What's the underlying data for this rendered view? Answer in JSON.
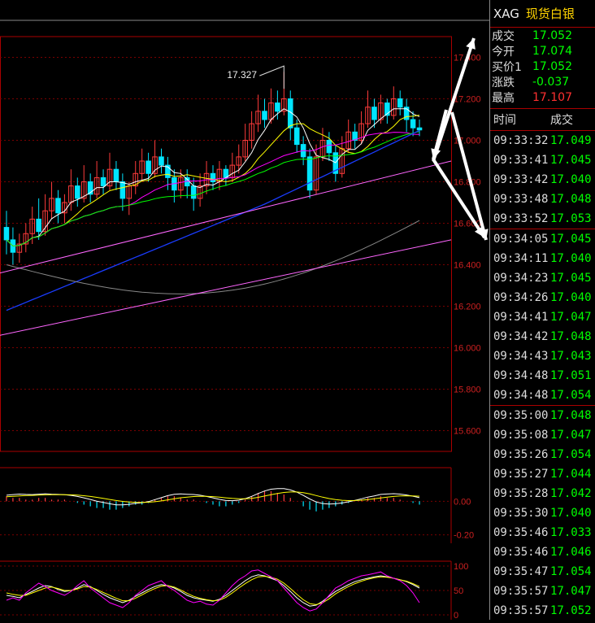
{
  "sidebar": {
    "symbol": "XAG",
    "name": "现货白银",
    "quote": [
      {
        "label": "成交",
        "value": "17.052",
        "tone": "green"
      },
      {
        "label": "今开",
        "value": "17.074",
        "tone": "green"
      },
      {
        "label": "买价1",
        "value": "17.052",
        "tone": "green"
      },
      {
        "label": "涨跌",
        "value": "-0.037",
        "tone": "green"
      },
      {
        "label": "最高",
        "value": "17.107",
        "tone": "red"
      }
    ],
    "ticks_header": {
      "time": "时间",
      "price": "成交"
    },
    "ticks": [
      {
        "time": "09:33:32",
        "price": "17.049"
      },
      {
        "time": "09:33:41",
        "price": "17.045"
      },
      {
        "time": "09:33:42",
        "price": "17.040"
      },
      {
        "time": "09:33:48",
        "price": "17.048"
      },
      {
        "time": "09:33:52",
        "price": "17.053"
      },
      {
        "time": "09:34:05",
        "price": "17.045"
      },
      {
        "time": "09:34:11",
        "price": "17.040"
      },
      {
        "time": "09:34:23",
        "price": "17.045"
      },
      {
        "time": "09:34:26",
        "price": "17.040"
      },
      {
        "time": "09:34:41",
        "price": "17.047"
      },
      {
        "time": "09:34:42",
        "price": "17.048"
      },
      {
        "time": "09:34:43",
        "price": "17.043"
      },
      {
        "time": "09:34:48",
        "price": "17.051"
      },
      {
        "time": "09:34:48",
        "price": "17.054"
      },
      {
        "time": "09:35:00",
        "price": "17.048"
      },
      {
        "time": "09:35:08",
        "price": "17.047"
      },
      {
        "time": "09:35:26",
        "price": "17.054"
      },
      {
        "time": "09:35:27",
        "price": "17.044"
      },
      {
        "time": "09:35:28",
        "price": "17.042"
      },
      {
        "time": "09:35:30",
        "price": "17.040"
      },
      {
        "time": "09:35:46",
        "price": "17.033"
      },
      {
        "time": "09:35:46",
        "price": "17.046"
      },
      {
        "time": "09:35:47",
        "price": "17.054"
      },
      {
        "time": "09:35:57",
        "price": "17.047"
      },
      {
        "time": "09:35:57",
        "price": "17.052"
      }
    ]
  },
  "chart_data": [
    {
      "type": "candlestick",
      "title": "",
      "ylim": [
        15.5,
        17.5
      ],
      "yticks": [
        "17.400",
        "17.200",
        "17.000",
        "16.800",
        "16.600",
        "16.400",
        "16.200",
        "16.000",
        "15.800",
        "15.600"
      ],
      "ytick_values": [
        17.4,
        17.2,
        17.0,
        16.8,
        16.6,
        16.4,
        16.2,
        16.0,
        15.8,
        15.6
      ],
      "annotation": {
        "text": "17.327",
        "value": 17.327
      },
      "candles": [
        [
          16.58,
          16.52,
          16.66,
          16.45
        ],
        [
          16.52,
          16.46,
          16.58,
          16.4
        ],
        [
          16.46,
          16.5,
          16.55,
          16.41
        ],
        [
          16.5,
          16.55,
          16.6,
          16.46
        ],
        [
          16.55,
          16.62,
          16.68,
          16.5
        ],
        [
          16.62,
          16.56,
          16.72,
          16.52
        ],
        [
          16.56,
          16.66,
          16.74,
          16.54
        ],
        [
          16.66,
          16.72,
          16.8,
          16.62
        ],
        [
          16.72,
          16.65,
          16.76,
          16.6
        ],
        [
          16.65,
          16.7,
          16.74,
          16.6
        ],
        [
          16.7,
          16.78,
          16.86,
          16.66
        ],
        [
          16.78,
          16.72,
          16.82,
          16.68
        ],
        [
          16.72,
          16.8,
          16.88,
          16.7
        ],
        [
          16.8,
          16.74,
          16.84,
          16.7
        ],
        [
          16.74,
          16.82,
          16.9,
          16.72
        ],
        [
          16.82,
          16.78,
          16.86,
          16.74
        ],
        [
          16.78,
          16.86,
          16.94,
          16.76
        ],
        [
          16.86,
          16.8,
          16.9,
          16.76
        ],
        [
          16.8,
          16.72,
          16.84,
          16.66
        ],
        [
          16.72,
          16.78,
          16.8,
          16.64
        ],
        [
          16.78,
          16.84,
          16.9,
          16.74
        ],
        [
          16.84,
          16.9,
          16.96,
          16.8
        ],
        [
          16.9,
          16.84,
          16.94,
          16.8
        ],
        [
          16.84,
          16.92,
          17.0,
          16.82
        ],
        [
          16.92,
          16.88,
          16.96,
          16.84
        ],
        [
          16.88,
          16.82,
          16.92,
          16.76
        ],
        [
          16.82,
          16.76,
          16.86,
          16.7
        ],
        [
          16.76,
          16.82,
          16.86,
          16.72
        ],
        [
          16.82,
          16.78,
          16.86,
          16.72
        ],
        [
          16.78,
          16.72,
          16.82,
          16.66
        ],
        [
          16.72,
          16.78,
          16.84,
          16.68
        ],
        [
          16.78,
          16.84,
          16.9,
          16.74
        ],
        [
          16.84,
          16.8,
          16.88,
          16.76
        ],
        [
          16.8,
          16.86,
          16.9,
          16.76
        ],
        [
          16.86,
          16.82,
          16.88,
          16.78
        ],
        [
          16.82,
          16.88,
          16.94,
          16.8
        ],
        [
          16.88,
          16.92,
          16.98,
          16.84
        ],
        [
          16.92,
          17.0,
          17.08,
          16.9
        ],
        [
          17.0,
          17.08,
          17.14,
          16.96
        ],
        [
          17.08,
          17.14,
          17.22,
          17.04
        ],
        [
          17.14,
          17.1,
          17.2,
          17.06
        ],
        [
          17.1,
          17.18,
          17.25,
          17.08
        ],
        [
          17.18,
          17.14,
          17.24,
          17.1
        ],
        [
          17.14,
          17.2,
          17.33,
          17.12
        ],
        [
          17.2,
          17.06,
          17.24,
          17.0
        ],
        [
          17.06,
          16.98,
          17.1,
          16.94
        ],
        [
          16.98,
          16.92,
          17.02,
          16.88
        ],
        [
          16.92,
          16.76,
          16.96,
          16.72
        ],
        [
          16.76,
          16.92,
          16.98,
          16.74
        ],
        [
          16.92,
          17.0,
          17.06,
          16.9
        ],
        [
          17.0,
          16.94,
          17.04,
          16.9
        ],
        [
          16.94,
          16.84,
          16.98,
          16.8
        ],
        [
          16.84,
          16.96,
          17.02,
          16.82
        ],
        [
          16.96,
          17.04,
          17.1,
          16.94
        ],
        [
          17.04,
          17.0,
          17.08,
          16.96
        ],
        [
          17.0,
          17.08,
          17.14,
          16.98
        ],
        [
          17.08,
          17.16,
          17.24,
          17.06
        ],
        [
          17.16,
          17.1,
          17.2,
          17.06
        ],
        [
          17.1,
          17.18,
          17.22,
          17.08
        ],
        [
          17.18,
          17.12,
          17.2,
          17.08
        ],
        [
          17.12,
          17.2,
          17.26,
          17.1
        ],
        [
          17.2,
          17.16,
          17.24,
          17.12
        ],
        [
          17.16,
          17.1,
          17.2,
          17.04
        ],
        [
          17.1,
          17.06,
          17.14,
          17.02
        ],
        [
          17.06,
          17.05,
          17.1,
          17.02
        ]
      ]
    },
    {
      "type": "bar",
      "title": "",
      "yticks": [
        "0.00",
        "-0.20"
      ],
      "ytick_values": [
        0.0,
        -0.2
      ],
      "ylim": [
        -0.25,
        0.2
      ],
      "values": [
        0.03,
        0.02,
        0.02,
        0.01,
        0.01,
        0.02,
        0.02,
        0.01,
        0.01,
        0.01,
        0.0,
        -0.01,
        -0.02,
        -0.03,
        -0.04,
        -0.04,
        -0.05,
        -0.05,
        -0.04,
        -0.03,
        -0.02,
        -0.02,
        -0.01,
        0.01,
        0.02,
        0.03,
        0.03,
        0.02,
        0.01,
        0.01,
        0.0,
        -0.01,
        -0.02,
        -0.03,
        -0.03,
        -0.02,
        -0.01,
        0.01,
        0.03,
        0.05,
        0.06,
        0.06,
        0.05,
        0.04,
        0.02,
        0.0,
        -0.03,
        -0.05,
        -0.06,
        -0.05,
        -0.04,
        -0.03,
        -0.02,
        -0.01,
        0.0,
        0.01,
        0.02,
        0.02,
        0.03,
        0.02,
        0.02,
        0.01,
        0.0,
        -0.01,
        -0.02
      ]
    },
    {
      "type": "line",
      "title": "",
      "yticks": [
        "100",
        "50",
        "0"
      ],
      "ytick_values": [
        100,
        50,
        0
      ],
      "ylim": [
        0,
        110
      ],
      "series": [
        {
          "color": "#ffffff",
          "values": [
            40,
            38,
            35,
            42,
            48,
            55,
            60,
            58,
            52,
            48,
            50,
            55,
            62,
            58,
            50,
            42,
            35,
            30,
            25,
            30,
            38,
            45,
            52,
            58,
            62,
            60,
            55,
            48,
            40,
            35,
            32,
            30,
            28,
            32,
            40,
            50,
            60,
            70,
            78,
            82,
            80,
            75,
            70,
            60,
            48,
            35,
            25,
            18,
            20,
            28,
            38,
            48,
            55,
            62,
            68,
            72,
            75,
            78,
            80,
            78,
            75,
            72,
            68,
            62,
            55
          ]
        },
        {
          "color": "#ffff00",
          "values": [
            45,
            42,
            40,
            40,
            45,
            50,
            55,
            57,
            54,
            50,
            50,
            53,
            58,
            57,
            52,
            46,
            40,
            34,
            29,
            29,
            34,
            41,
            48,
            54,
            59,
            60,
            57,
            51,
            44,
            38,
            34,
            31,
            29,
            30,
            36,
            45,
            55,
            64,
            72,
            78,
            79,
            77,
            73,
            65,
            54,
            42,
            31,
            23,
            21,
            25,
            33,
            43,
            51,
            58,
            64,
            69,
            73,
            76,
            78,
            77,
            75,
            72,
            69,
            64,
            58
          ]
        },
        {
          "color": "#ff00ff",
          "values": [
            30,
            35,
            30,
            45,
            55,
            65,
            58,
            50,
            45,
            40,
            48,
            60,
            70,
            55,
            45,
            35,
            25,
            20,
            15,
            25,
            40,
            50,
            60,
            65,
            70,
            58,
            50,
            40,
            30,
            25,
            28,
            22,
            20,
            30,
            45,
            60,
            72,
            80,
            90,
            92,
            85,
            78,
            70,
            55,
            40,
            25,
            15,
            8,
            12,
            25,
            40,
            55,
            62,
            70,
            75,
            80,
            82,
            85,
            88,
            80,
            75,
            70,
            60,
            45,
            25
          ]
        }
      ]
    }
  ]
}
